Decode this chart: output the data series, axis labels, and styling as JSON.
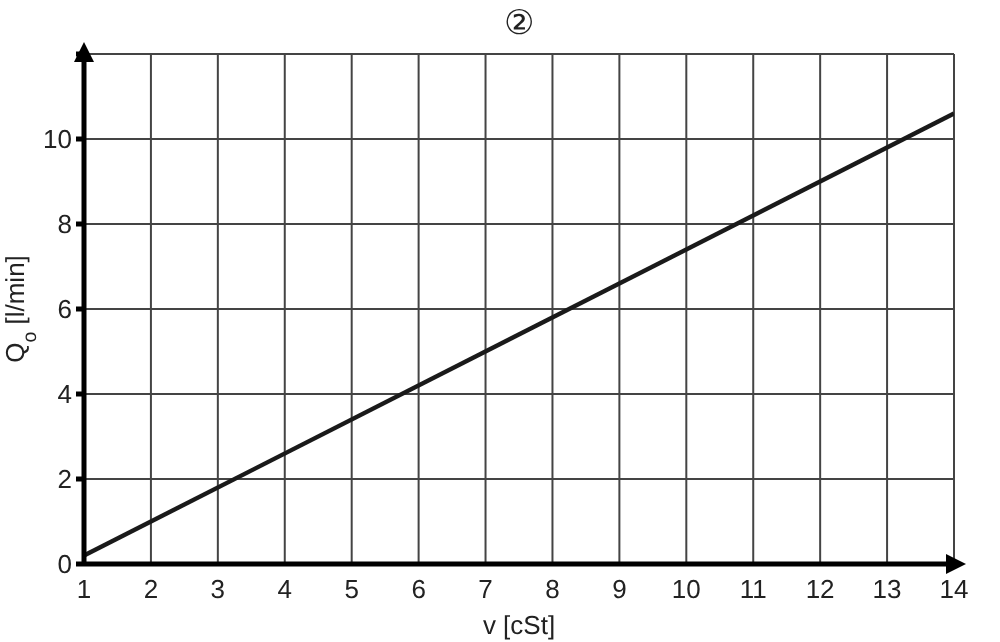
{
  "chart_data": {
    "type": "line",
    "title": "②",
    "xlabel": "v [cSt]",
    "ylabel": "Q$_{o}$ [l/min]",
    "x": [
      1,
      14
    ],
    "series": [
      {
        "color": "#1a1a1a",
        "values": [
          0.2,
          10.6
        ]
      }
    ],
    "xlim": [
      1,
      14
    ],
    "xticks": [
      1,
      2,
      3,
      4,
      5,
      6,
      7,
      8,
      9,
      10,
      11,
      12,
      13,
      14
    ],
    "ylim": [
      0,
      12
    ],
    "yticks": [
      0,
      2,
      4,
      6,
      8,
      10,
      {
        "value": 12,
        "label": null
      }
    ],
    "grid": true,
    "marker": "none",
    "line_style": "solid"
  }
}
